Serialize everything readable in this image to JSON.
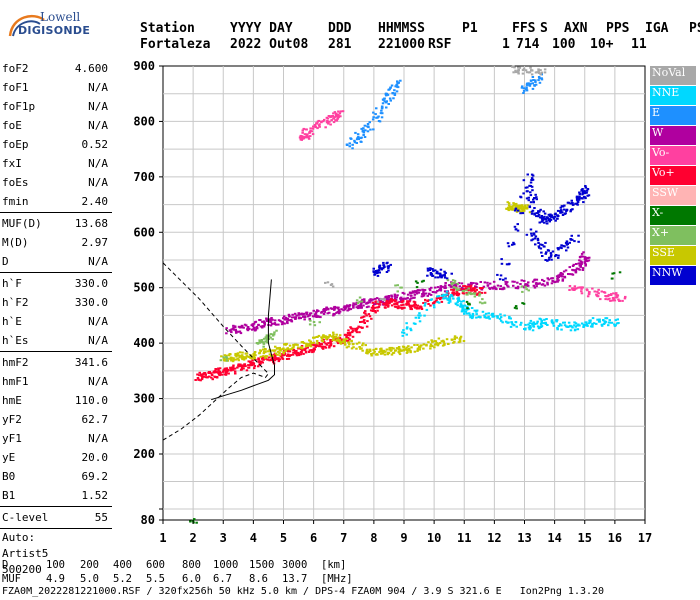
{
  "logo": {
    "line1": "Lowell",
    "line2": "DIGISONDE"
  },
  "header": {
    "row1": [
      "Station",
      "YYYY DAY",
      "DDD",
      "HHMMSS",
      "P1",
      "FFS",
      "S",
      "AXN",
      "PPS",
      "IGA",
      "PS"
    ],
    "row2": [
      "Fortaleza",
      "2022 Out08",
      "281",
      "221000",
      "RSF",
      "1",
      "714",
      "100",
      "10+",
      "11"
    ]
  },
  "params": [
    {
      "label": "foF2",
      "value": "4.600"
    },
    {
      "label": "foF1",
      "value": "N/A"
    },
    {
      "label": "foF1p",
      "value": "N/A"
    },
    {
      "label": "foE",
      "value": "N/A"
    },
    {
      "label": "foEp",
      "value": "0.52"
    },
    {
      "label": "fxI",
      "value": "N/A"
    },
    {
      "label": "foEs",
      "value": "N/A"
    },
    {
      "label": "fmin",
      "value": "2.40"
    },
    {
      "label": "MUF(D)",
      "value": "13.68",
      "divider_before": true
    },
    {
      "label": "M(D)",
      "value": "2.97"
    },
    {
      "label": "D",
      "value": "N/A"
    },
    {
      "label": "h`F",
      "value": "330.0",
      "divider_before": true
    },
    {
      "label": "h`F2",
      "value": "330.0"
    },
    {
      "label": "h`E",
      "value": "N/A"
    },
    {
      "label": "h`Es",
      "value": "N/A"
    },
    {
      "label": "hmF2",
      "value": "341.6",
      "divider_before": true
    },
    {
      "label": "hmF1",
      "value": "N/A"
    },
    {
      "label": "hmE",
      "value": "110.0"
    },
    {
      "label": "yF2",
      "value": "62.7"
    },
    {
      "label": "yF1",
      "value": "N/A"
    },
    {
      "label": "yE",
      "value": "20.0"
    },
    {
      "label": "B0",
      "value": "69.2"
    },
    {
      "label": "B1",
      "value": "1.52"
    },
    {
      "label": "C-level",
      "value": "55",
      "divider_before": true
    }
  ],
  "auto": {
    "line1": "Auto:",
    "line2": "Artist5",
    "line3": "500200"
  },
  "legend": [
    {
      "label": "NoVal",
      "color": "#a8a8a8"
    },
    {
      "label": "NNE",
      "color": "#00d8ff"
    },
    {
      "label": "E",
      "color": "#1e90ff"
    },
    {
      "label": "W",
      "color": "#b0009f"
    },
    {
      "label": "Vo-",
      "color": "#ff40a0"
    },
    {
      "label": "Vo+",
      "color": "#ff0030"
    },
    {
      "label": "SSW",
      "color": "#ffb4b4"
    },
    {
      "label": "X-",
      "color": "#007800"
    },
    {
      "label": "X+",
      "color": "#7fbf5f"
    },
    {
      "label": "SSE",
      "color": "#c8c800"
    },
    {
      "label": "NNW",
      "color": "#0000d0"
    }
  ],
  "footer": {
    "d_label": "D",
    "d_values": [
      "100",
      "200",
      "400",
      "600",
      "800",
      "1000",
      "1500",
      "3000"
    ],
    "d_unit": "[km]",
    "muf_label": "MUF",
    "muf_values": [
      "4.9",
      "5.0",
      "5.2",
      "5.5",
      "6.0",
      "6.7",
      "8.6",
      "13.7"
    ],
    "muf_unit": "[MHz]",
    "info": "FZA0M_2022281221000.RSF / 320fx256h 50 kHz 5.0 km / DPS-4 FZA0M 904 / 3.9 S 321.6 E   Ion2Png 1.3.20"
  },
  "chart_data": {
    "type": "scatter",
    "xlim": [
      1,
      17
    ],
    "ylim": [
      80,
      900
    ],
    "x_ticks": [
      1,
      2,
      3,
      4,
      5,
      6,
      7,
      8,
      9,
      10,
      11,
      12,
      13,
      14,
      15,
      16,
      17
    ],
    "y_ticks": [
      80,
      100,
      200,
      300,
      400,
      500,
      600,
      700,
      800,
      900
    ],
    "x_tick_labels": [
      "1",
      "2",
      "3",
      "4",
      "5",
      "6",
      "7",
      "8",
      "9",
      "10",
      "11",
      "12",
      "13",
      "14",
      "15",
      "16",
      "17"
    ],
    "y_tick_labels": [
      "80",
      "",
      "200",
      "300",
      "400",
      "500",
      "600",
      "700",
      "800",
      "900"
    ],
    "grid": true,
    "series": [
      {
        "name": "W",
        "color": "#b0009f",
        "points": [
          [
            3.2,
            425
          ],
          [
            3.8,
            430
          ],
          [
            4.4,
            438
          ],
          [
            5.0,
            444
          ],
          [
            5.6,
            450
          ],
          [
            6.2,
            456
          ],
          [
            6.8,
            462
          ],
          [
            7.4,
            470
          ],
          [
            8.0,
            476
          ],
          [
            8.6,
            482
          ],
          [
            9.2,
            488
          ],
          [
            9.8,
            495
          ],
          [
            10.6,
            505
          ],
          [
            11.5,
            505
          ],
          [
            12.5,
            506
          ],
          [
            13.5,
            510
          ],
          [
            14.2,
            520
          ],
          [
            14.8,
            540
          ],
          [
            15.0,
            560
          ]
        ]
      },
      {
        "name": "Vo+",
        "color": "#ff0030",
        "points": [
          [
            2.2,
            340
          ],
          [
            2.6,
            345
          ],
          [
            3.0,
            350
          ],
          [
            3.5,
            358
          ],
          [
            4.0,
            365
          ],
          [
            4.5,
            372
          ],
          [
            5.0,
            380
          ],
          [
            5.5,
            388
          ],
          [
            6.0,
            395
          ],
          [
            6.5,
            402
          ],
          [
            7.0,
            410
          ],
          [
            7.5,
            430
          ],
          [
            8.0,
            470
          ],
          [
            8.5,
            475
          ],
          [
            9.0,
            470
          ],
          [
            9.5,
            470
          ],
          [
            10.5,
            490
          ],
          [
            11.0,
            500
          ],
          [
            11.5,
            495
          ]
        ]
      },
      {
        "name": "SSE",
        "color": "#c8c800",
        "points": [
          [
            3.0,
            375
          ],
          [
            3.5,
            378
          ],
          [
            4.0,
            380
          ],
          [
            4.6,
            385
          ],
          [
            5.2,
            395
          ],
          [
            6.0,
            405
          ],
          [
            6.6,
            415
          ],
          [
            7.2,
            400
          ],
          [
            8.0,
            385
          ],
          [
            8.6,
            388
          ],
          [
            9.2,
            390
          ],
          [
            10.0,
            400
          ],
          [
            10.8,
            410
          ],
          [
            12.5,
            650
          ],
          [
            12.7,
            645
          ],
          [
            13.0,
            645
          ]
        ]
      },
      {
        "name": "NNE",
        "color": "#00d8ff",
        "points": [
          [
            9.0,
            420
          ],
          [
            10.2,
            490
          ],
          [
            10.8,
            475
          ],
          [
            11.2,
            455
          ],
          [
            12.0,
            450
          ],
          [
            13.0,
            430
          ],
          [
            13.6,
            440
          ],
          [
            14.5,
            430
          ],
          [
            15.2,
            440
          ],
          [
            16.0,
            440
          ]
        ]
      },
      {
        "name": "NNW",
        "color": "#0000d0",
        "points": [
          [
            8.0,
            530
          ],
          [
            8.4,
            540
          ],
          [
            9.9,
            530
          ],
          [
            10.4,
            525
          ],
          [
            12.2,
            520
          ],
          [
            13.1,
            700
          ],
          [
            13.3,
            640
          ],
          [
            13.7,
            620
          ],
          [
            14.2,
            640
          ],
          [
            14.8,
            660
          ],
          [
            15.0,
            680
          ],
          [
            13.2,
            600
          ],
          [
            13.8,
            555
          ],
          [
            14.6,
            590
          ]
        ]
      },
      {
        "name": "X+",
        "color": "#7fbf5f",
        "points": [
          [
            3.0,
            370
          ],
          [
            4.2,
            400
          ],
          [
            4.6,
            420
          ],
          [
            6.0,
            440
          ],
          [
            7.5,
            480
          ],
          [
            8.8,
            500
          ],
          [
            10.5,
            510
          ],
          [
            11.5,
            480
          ],
          [
            13.0,
            500
          ]
        ]
      },
      {
        "name": "Vo-",
        "color": "#ff40a0",
        "points": [
          [
            5.6,
            770
          ],
          [
            5.8,
            785
          ],
          [
            6.5,
            805
          ],
          [
            6.8,
            815
          ],
          [
            14.5,
            500
          ],
          [
            15.5,
            490
          ],
          [
            16.2,
            480
          ]
        ]
      },
      {
        "name": "E",
        "color": "#1e90ff",
        "points": [
          [
            7.2,
            760
          ],
          [
            7.8,
            790
          ],
          [
            8.4,
            840
          ],
          [
            8.7,
            870
          ],
          [
            13.4,
            880
          ],
          [
            13.0,
            860
          ]
        ]
      },
      {
        "name": "X-",
        "color": "#007800",
        "points": [
          [
            2.0,
            81
          ],
          [
            9.5,
            510
          ],
          [
            11.2,
            470
          ],
          [
            12.8,
            470
          ],
          [
            16.0,
            525
          ]
        ]
      },
      {
        "name": "NoVal",
        "color": "#a8a8a8",
        "points": [
          [
            6.5,
            505
          ],
          [
            8.2,
            480
          ],
          [
            12.6,
            895
          ],
          [
            13.5,
            890
          ]
        ]
      }
    ],
    "profile_solid": [
      [
        2.6,
        298
      ],
      [
        3.0,
        305
      ],
      [
        3.6,
        315
      ],
      [
        4.1,
        325
      ],
      [
        4.5,
        333
      ],
      [
        4.7,
        343
      ],
      [
        4.7,
        360
      ],
      [
        4.6,
        380
      ],
      [
        4.5,
        400
      ],
      [
        4.5,
        450
      ],
      [
        4.6,
        515
      ]
    ],
    "profile_dashed": [
      [
        1.0,
        225
      ],
      [
        1.6,
        245
      ],
      [
        2.2,
        270
      ],
      [
        2.8,
        300
      ],
      [
        3.2,
        320
      ],
      [
        3.6,
        338
      ],
      [
        4.0,
        346
      ],
      [
        4.4,
        338
      ],
      [
        4.5,
        345
      ],
      [
        3.6,
        395
      ],
      [
        3.0,
        430
      ],
      [
        2.2,
        480
      ],
      [
        1.0,
        545
      ]
    ]
  }
}
